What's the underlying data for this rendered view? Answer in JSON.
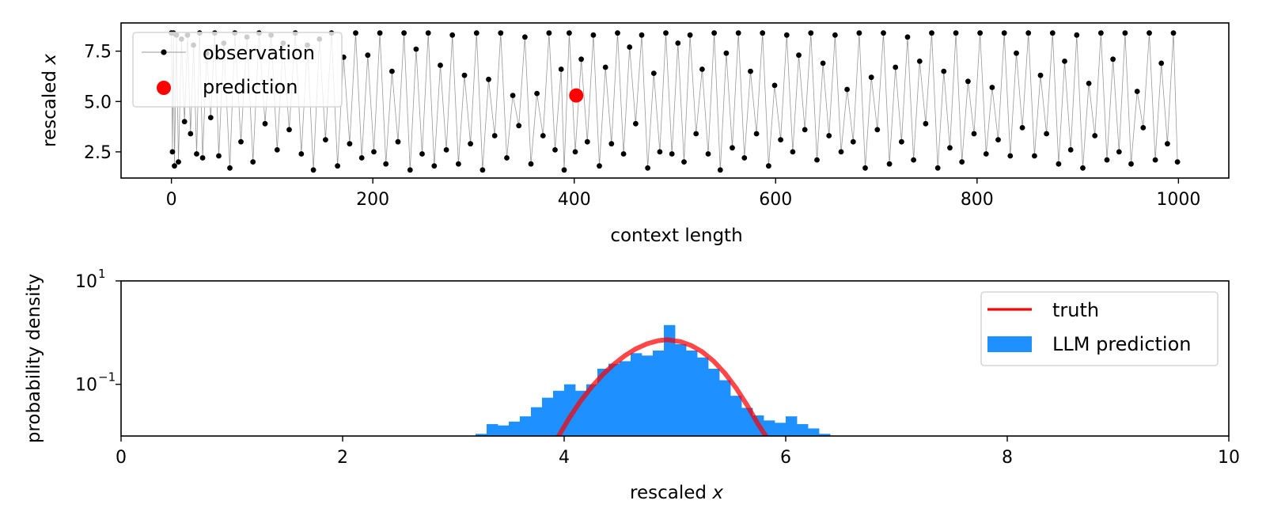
{
  "colors": {
    "observation": "#000000",
    "observation_line": "#999999",
    "prediction": "#ff0000",
    "truth": "#ff0000",
    "llm_prediction": "#1e90ff"
  },
  "chart_data": [
    {
      "type": "scatter",
      "xlabel": "context length",
      "ylabel_prefix": "rescaled ",
      "ylabel_var": "x",
      "xlim": [
        -50,
        1050
      ],
      "ylim": [
        1.2,
        8.9
      ],
      "x_ticks": [
        0,
        200,
        400,
        600,
        800,
        1000
      ],
      "x_tick_labels": [
        "0",
        "200",
        "400",
        "600",
        "800",
        "1000"
      ],
      "y_ticks": [
        2.5,
        5.0,
        7.5
      ],
      "y_tick_labels": [
        "2.5",
        "5.0",
        "7.5"
      ],
      "legend_position": "upper-left",
      "series": [
        {
          "name": "observation",
          "marker": "dot",
          "connected": true,
          "points_sample": [
            [
              0,
              8.4
            ],
            [
              1,
              2.5
            ],
            [
              2,
              8.4
            ],
            [
              3,
              1.8
            ],
            [
              5,
              8.3
            ],
            [
              7,
              2.0
            ],
            [
              10,
              8.1
            ],
            [
              13,
              4.0
            ],
            [
              16,
              8.3
            ],
            [
              19,
              3.4
            ],
            [
              22,
              7.8
            ],
            [
              25,
              2.4
            ],
            [
              28,
              8.4
            ],
            [
              31,
              2.2
            ],
            [
              35,
              7.4
            ],
            [
              39,
              4.2
            ],
            [
              43,
              8.4
            ],
            [
              47,
              2.3
            ],
            [
              52,
              7.9
            ],
            [
              58,
              1.7
            ],
            [
              63,
              8.4
            ],
            [
              69,
              3.0
            ],
            [
              75,
              8.2
            ],
            [
              81,
              2.0
            ],
            [
              87,
              8.4
            ],
            [
              93,
              3.9
            ],
            [
              99,
              8.3
            ],
            [
              105,
              2.6
            ],
            [
              111,
              7.9
            ],
            [
              117,
              3.6
            ],
            [
              123,
              8.4
            ],
            [
              129,
              2.4
            ],
            [
              135,
              7.8
            ],
            [
              141,
              1.6
            ],
            [
              147,
              8.1
            ],
            [
              153,
              3.1
            ],
            [
              159,
              8.4
            ],
            [
              165,
              1.8
            ],
            [
              171,
              7.2
            ],
            [
              177,
              2.9
            ],
            [
              183,
              8.4
            ],
            [
              189,
              2.2
            ],
            [
              195,
              7.3
            ],
            [
              201,
              2.5
            ],
            [
              207,
              8.4
            ],
            [
              213,
              1.9
            ],
            [
              219,
              6.5
            ],
            [
              225,
              3.0
            ],
            [
              231,
              8.4
            ],
            [
              237,
              1.6
            ],
            [
              243,
              7.6
            ],
            [
              249,
              2.4
            ],
            [
              255,
              8.4
            ],
            [
              261,
              1.8
            ],
            [
              267,
              6.8
            ],
            [
              273,
              2.6
            ],
            [
              279,
              8.3
            ],
            [
              285,
              1.9
            ],
            [
              291,
              6.3
            ],
            [
              297,
              2.9
            ],
            [
              303,
              8.4
            ],
            [
              309,
              1.6
            ],
            [
              315,
              6.1
            ],
            [
              321,
              3.3
            ],
            [
              327,
              8.4
            ],
            [
              333,
              2.2
            ],
            [
              339,
              5.3
            ],
            [
              345,
              3.8
            ],
            [
              351,
              8.2
            ],
            [
              357,
              1.9
            ],
            [
              363,
              5.4
            ],
            [
              369,
              3.3
            ],
            [
              375,
              8.4
            ],
            [
              381,
              2.6
            ],
            [
              387,
              6.6
            ],
            [
              390,
              1.6
            ],
            [
              395,
              8.4
            ],
            [
              401,
              2.5
            ],
            [
              407,
              7.1
            ],
            [
              413,
              3.0
            ],
            [
              419,
              8.3
            ],
            [
              425,
              1.8
            ],
            [
              431,
              6.7
            ],
            [
              437,
              2.9
            ],
            [
              443,
              8.4
            ],
            [
              449,
              2.4
            ],
            [
              455,
              7.7
            ],
            [
              461,
              3.9
            ],
            [
              467,
              8.3
            ],
            [
              473,
              1.7
            ],
            [
              479,
              6.4
            ],
            [
              485,
              2.5
            ],
            [
              491,
              8.4
            ],
            [
              497,
              2.4
            ],
            [
              503,
              7.9
            ],
            [
              509,
              2.0
            ],
            [
              515,
              8.3
            ],
            [
              521,
              3.4
            ],
            [
              527,
              6.6
            ],
            [
              533,
              2.4
            ],
            [
              539,
              8.4
            ],
            [
              545,
              1.6
            ],
            [
              551,
              7.4
            ],
            [
              557,
              2.7
            ],
            [
              563,
              8.4
            ],
            [
              569,
              2.2
            ],
            [
              575,
              6.5
            ],
            [
              581,
              3.4
            ],
            [
              587,
              8.4
            ],
            [
              593,
              1.8
            ],
            [
              599,
              5.8
            ],
            [
              605,
              3.1
            ],
            [
              611,
              8.3
            ],
            [
              617,
              2.5
            ],
            [
              623,
              7.3
            ],
            [
              629,
              3.6
            ],
            [
              635,
              8.4
            ],
            [
              641,
              2.1
            ],
            [
              647,
              6.9
            ],
            [
              653,
              3.3
            ],
            [
              659,
              8.3
            ],
            [
              665,
              2.5
            ],
            [
              671,
              5.6
            ],
            [
              677,
              3.0
            ],
            [
              683,
              8.4
            ],
            [
              689,
              1.7
            ],
            [
              695,
              6.2
            ],
            [
              701,
              3.6
            ],
            [
              707,
              8.4
            ],
            [
              713,
              1.9
            ],
            [
              719,
              6.7
            ],
            [
              725,
              3.0
            ],
            [
              731,
              8.2
            ],
            [
              737,
              2.1
            ],
            [
              743,
              7.0
            ],
            [
              749,
              3.9
            ],
            [
              755,
              8.4
            ],
            [
              761,
              1.7
            ],
            [
              767,
              6.5
            ],
            [
              773,
              2.7
            ],
            [
              779,
              8.4
            ],
            [
              785,
              2.0
            ],
            [
              791,
              6.0
            ],
            [
              797,
              3.4
            ],
            [
              803,
              8.4
            ],
            [
              809,
              2.4
            ],
            [
              815,
              5.7
            ],
            [
              821,
              3.1
            ],
            [
              827,
              8.4
            ],
            [
              833,
              2.3
            ],
            [
              839,
              7.4
            ],
            [
              845,
              3.7
            ],
            [
              851,
              8.4
            ],
            [
              857,
              2.3
            ],
            [
              863,
              6.3
            ],
            [
              869,
              3.4
            ],
            [
              875,
              8.4
            ],
            [
              881,
              1.9
            ],
            [
              887,
              7.0
            ],
            [
              893,
              2.6
            ],
            [
              899,
              8.3
            ],
            [
              905,
              1.7
            ],
            [
              911,
              5.9
            ],
            [
              917,
              3.3
            ],
            [
              923,
              8.4
            ],
            [
              929,
              2.1
            ],
            [
              935,
              7.1
            ],
            [
              941,
              2.5
            ],
            [
              947,
              8.4
            ],
            [
              953,
              1.9
            ],
            [
              959,
              5.5
            ],
            [
              965,
              3.7
            ],
            [
              971,
              8.4
            ],
            [
              977,
              2.1
            ],
            [
              983,
              6.9
            ],
            [
              989,
              2.9
            ],
            [
              995,
              8.4
            ],
            [
              999,
              2.0
            ]
          ]
        },
        {
          "name": "prediction",
          "marker": "large-dot",
          "points": [
            [
              402,
              5.3
            ]
          ]
        }
      ]
    },
    {
      "type": "area",
      "xlabel_prefix": "rescaled ",
      "xlabel_var": "x",
      "ylabel": "probability density",
      "y_scale": "log",
      "xlim": [
        0,
        10
      ],
      "ylim": [
        0.01,
        10
      ],
      "x_ticks": [
        0,
        2,
        4,
        6,
        8,
        10
      ],
      "x_tick_labels": [
        "0",
        "2",
        "4",
        "6",
        "8",
        "10"
      ],
      "y_ticks": [
        0.1,
        10
      ],
      "y_tick_labels": [
        {
          "base": "10",
          "exp": "−1"
        },
        {
          "base": "10",
          "exp": "1"
        }
      ],
      "legend_position": "upper-right",
      "series": [
        {
          "name": "truth",
          "type": "line",
          "x": [
            3.95,
            4.05,
            4.15,
            4.25,
            4.35,
            4.45,
            4.55,
            4.65,
            4.75,
            4.85,
            4.93,
            5.05,
            5.15,
            5.25,
            5.35,
            5.45,
            5.55,
            5.65,
            5.75,
            5.82
          ],
          "values": [
            0.01,
            0.023,
            0.048,
            0.09,
            0.155,
            0.245,
            0.36,
            0.49,
            0.61,
            0.7,
            0.73,
            0.67,
            0.56,
            0.42,
            0.28,
            0.165,
            0.086,
            0.04,
            0.017,
            0.01
          ]
        },
        {
          "name": "LLM prediction",
          "type": "histogram",
          "bin_width": 0.1,
          "bin_starts": [
            3.2,
            3.3,
            3.4,
            3.5,
            3.6,
            3.7,
            3.8,
            3.9,
            4.0,
            4.1,
            4.2,
            4.3,
            4.4,
            4.5,
            4.6,
            4.7,
            4.8,
            4.9,
            5.0,
            5.1,
            5.2,
            5.3,
            5.4,
            5.5,
            5.6,
            5.7,
            5.8,
            5.9,
            6.0,
            6.1,
            6.2,
            6.3
          ],
          "values": [
            0.011,
            0.017,
            0.016,
            0.019,
            0.024,
            0.036,
            0.055,
            0.075,
            0.1,
            0.075,
            0.1,
            0.2,
            0.25,
            0.28,
            0.4,
            0.36,
            0.45,
            1.4,
            0.6,
            0.45,
            0.33,
            0.2,
            0.12,
            0.06,
            0.035,
            0.025,
            0.02,
            0.018,
            0.024,
            0.017,
            0.014,
            0.011
          ]
        }
      ]
    }
  ]
}
